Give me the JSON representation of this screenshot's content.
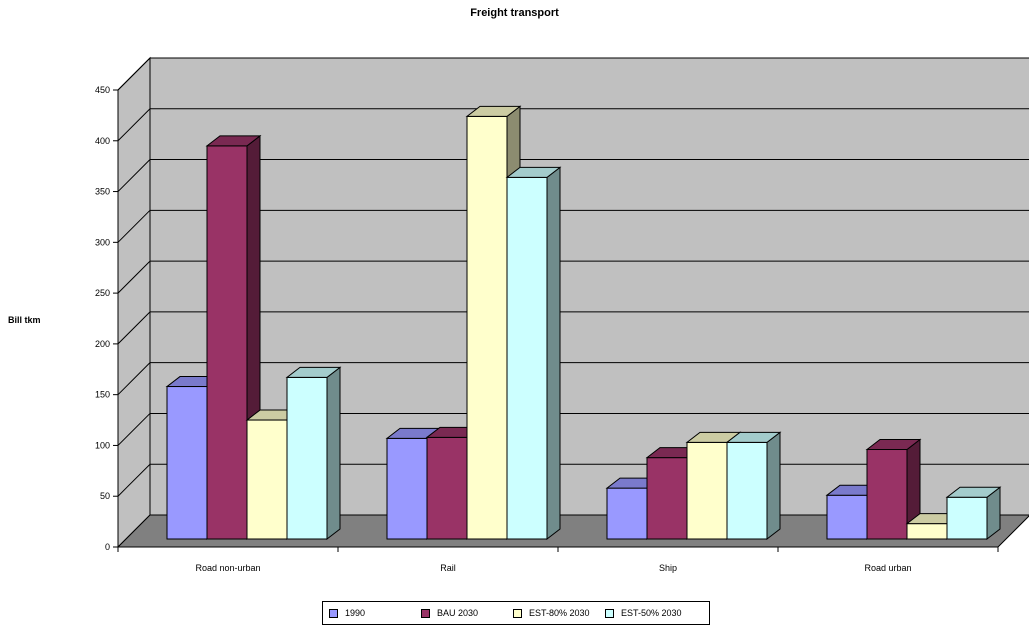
{
  "chart_data": {
    "type": "bar",
    "title": "Freight transport",
    "ylabel": "Bill tkm",
    "xlabel": "",
    "categories": [
      "Road non-urban",
      "Rail",
      "Ship",
      "Road urban"
    ],
    "series": [
      {
        "name": "1990",
        "values": [
          158,
          107,
          58,
          51
        ],
        "color": "#9999ff"
      },
      {
        "name": "BAU 2030",
        "values": [
          395,
          108,
          88,
          96
        ],
        "color": "#993366"
      },
      {
        "name": "EST-80% 2030",
        "values": [
          125,
          424,
          103,
          23
        ],
        "color": "#ffffcc"
      },
      {
        "name": "EST-50% 2030",
        "values": [
          167,
          364,
          103,
          49
        ],
        "color": "#ccffff"
      }
    ],
    "ylim": [
      0,
      450
    ],
    "yticks": [
      0,
      50,
      100,
      150,
      200,
      250,
      300,
      350,
      400,
      450
    ],
    "grid": true,
    "legend": "bottom",
    "colors": {
      "wall": "#c0c0c0",
      "floor": "#808080",
      "gridline": "#000000"
    }
  }
}
